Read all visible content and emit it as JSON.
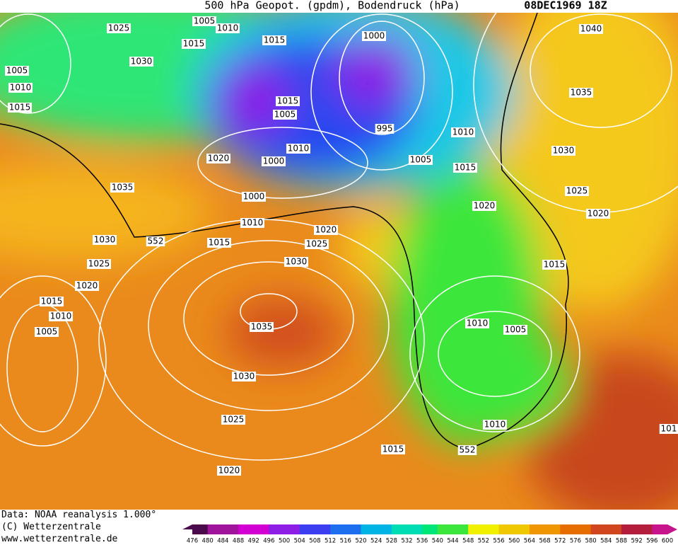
{
  "header": {
    "title": "500 hPa Geopot. (gpdm), Bodendruck (hPa)",
    "date": "08DEC1969 18Z"
  },
  "isobar_labels": [
    "1025",
    "1005",
    "1010",
    "1015",
    "1015",
    "1000",
    "1040",
    "1005",
    "1030",
    "1010",
    "1015",
    "1035",
    "1015",
    "1005",
    "995",
    "1010",
    "1030",
    "1020",
    "1010",
    "1000",
    "1005",
    "1015",
    "1035",
    "1000",
    "1025",
    "1020",
    "1020",
    "1010",
    "1030",
    "552",
    "1015",
    "1020",
    "1025",
    "1030",
    "1015",
    "1025",
    "1020",
    "1015",
    "1010",
    "1005",
    "1035",
    "1010",
    "1005",
    "1030",
    "1025",
    "1010",
    "1015",
    "552",
    "1020",
    "101"
  ],
  "footer": [
    "Data: NOAA reanalysis 1.000°",
    "(C) Wetterzentrale",
    "www.wetterzentrale.de"
  ],
  "scale": [
    476,
    480,
    484,
    488,
    492,
    496,
    500,
    504,
    508,
    512,
    516,
    520,
    524,
    528,
    532,
    536,
    540,
    544,
    548,
    552,
    556,
    560,
    564,
    568,
    572,
    576,
    580,
    584,
    588,
    592,
    596,
    600
  ]
}
